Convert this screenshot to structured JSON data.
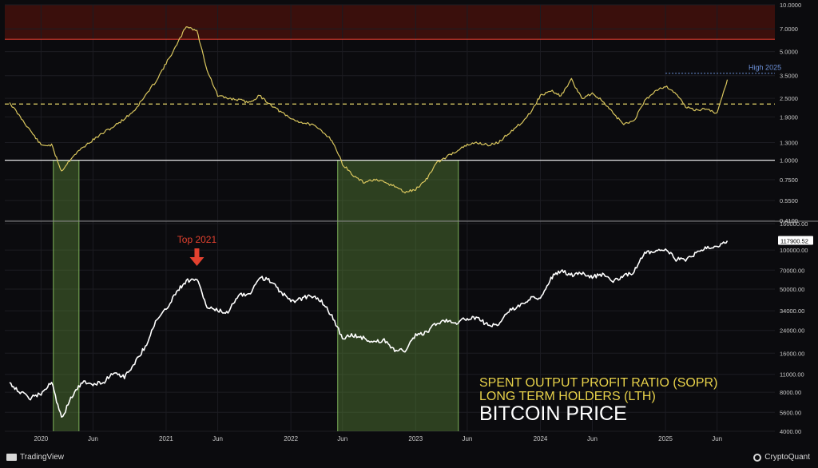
{
  "chart_data": [
    {
      "type": "line",
      "panel": "top",
      "title": "",
      "scale": "log",
      "ylim": [
        0.41,
        10.0
      ],
      "y_ticks": [
        "10.0000",
        "7.0000",
        "5.0000",
        "3.5000",
        "2.5000",
        "1.9000",
        "1.3000",
        "1.0000",
        "0.7500",
        "0.5500",
        "0.4100"
      ],
      "y_tick_values": [
        10.0,
        7.0,
        5.0,
        3.5,
        2.5,
        1.9,
        1.3,
        1.0,
        0.75,
        0.55,
        0.41
      ],
      "reference_lines": [
        {
          "value": 1.0,
          "style": "solid",
          "color": "#e6e6e6"
        },
        {
          "value": 2.3,
          "style": "dashed",
          "color": "#e6d56a"
        },
        {
          "value": 6.0,
          "style": "solid",
          "color": "#d23a2e"
        }
      ],
      "high_band": [
        6.0,
        10.0
      ],
      "annotation": "High 2025",
      "series": [
        {
          "color": "#d9c65e",
          "x": [
            "2019-10",
            "2019-11",
            "2019-12",
            "2020-01",
            "2020-02",
            "2020-03",
            "2020-04",
            "2020-05",
            "2020-06",
            "2020-07",
            "2020-08",
            "2020-09",
            "2020-10",
            "2020-11",
            "2020-12",
            "2021-01",
            "2021-02",
            "2021-03",
            "2021-04",
            "2021-05",
            "2021-06",
            "2021-07",
            "2021-08",
            "2021-09",
            "2021-10",
            "2021-11",
            "2021-12",
            "2022-01",
            "2022-02",
            "2022-03",
            "2022-04",
            "2022-05",
            "2022-06",
            "2022-07",
            "2022-08",
            "2022-09",
            "2022-10",
            "2022-11",
            "2022-12",
            "2023-01",
            "2023-02",
            "2023-03",
            "2023-04",
            "2023-05",
            "2023-06",
            "2023-07",
            "2023-08",
            "2023-09",
            "2023-10",
            "2023-11",
            "2023-12",
            "2024-01",
            "2024-02",
            "2024-03",
            "2024-04",
            "2024-05",
            "2024-06",
            "2024-07",
            "2024-08",
            "2024-09",
            "2024-10",
            "2024-11",
            "2024-12",
            "2025-01",
            "2025-02",
            "2025-03",
            "2025-04",
            "2025-05",
            "2025-06",
            "2025-07"
          ],
          "values": [
            2.35,
            1.9,
            1.55,
            1.25,
            1.25,
            0.85,
            1.05,
            1.2,
            1.35,
            1.5,
            1.65,
            1.85,
            2.1,
            2.6,
            3.2,
            4.2,
            5.5,
            7.3,
            6.8,
            3.8,
            2.6,
            2.5,
            2.45,
            2.35,
            2.6,
            2.3,
            2.05,
            1.85,
            1.75,
            1.7,
            1.55,
            1.35,
            0.95,
            0.8,
            0.72,
            0.75,
            0.72,
            0.68,
            0.62,
            0.65,
            0.75,
            0.95,
            1.05,
            1.15,
            1.25,
            1.3,
            1.25,
            1.3,
            1.5,
            1.7,
            2.0,
            2.6,
            2.8,
            2.6,
            3.3,
            2.5,
            2.7,
            2.4,
            2.0,
            1.7,
            1.8,
            2.4,
            2.8,
            3.0,
            2.7,
            2.2,
            2.1,
            2.15,
            2.0,
            3.3
          ]
        }
      ]
    },
    {
      "type": "line",
      "panel": "bottom",
      "title": "",
      "scale": "log",
      "ylim": [
        4000,
        160000
      ],
      "y_ticks": [
        "160000.00",
        "100000.00",
        "70000.00",
        "50000.00",
        "34000.00",
        "24000.00",
        "16000.00",
        "11000.00",
        "8000.00",
        "5600.00",
        "4000.00"
      ],
      "y_tick_values": [
        160000,
        100000,
        70000,
        50000,
        34000,
        24000,
        16000,
        11000,
        8000,
        5600,
        4000
      ],
      "last_price_label": "117900.52",
      "annotation": "Top 2021",
      "series": [
        {
          "color": "#ffffff",
          "x": [
            "2019-10",
            "2019-11",
            "2019-12",
            "2020-01",
            "2020-02",
            "2020-03",
            "2020-04",
            "2020-05",
            "2020-06",
            "2020-07",
            "2020-08",
            "2020-09",
            "2020-10",
            "2020-11",
            "2020-12",
            "2021-01",
            "2021-02",
            "2021-03",
            "2021-04",
            "2021-05",
            "2021-06",
            "2021-07",
            "2021-08",
            "2021-09",
            "2021-10",
            "2021-11",
            "2021-12",
            "2022-01",
            "2022-02",
            "2022-03",
            "2022-04",
            "2022-05",
            "2022-06",
            "2022-07",
            "2022-08",
            "2022-09",
            "2022-10",
            "2022-11",
            "2022-12",
            "2023-01",
            "2023-02",
            "2023-03",
            "2023-04",
            "2023-05",
            "2023-06",
            "2023-07",
            "2023-08",
            "2023-09",
            "2023-10",
            "2023-11",
            "2023-12",
            "2024-01",
            "2024-02",
            "2024-03",
            "2024-04",
            "2024-05",
            "2024-06",
            "2024-07",
            "2024-08",
            "2024-09",
            "2024-10",
            "2024-11",
            "2024-12",
            "2025-01",
            "2025-02",
            "2025-03",
            "2025-04",
            "2025-05",
            "2025-06",
            "2025-07"
          ],
          "values": [
            9500,
            8000,
            7200,
            7800,
            9500,
            5000,
            7500,
            9500,
            9300,
            9500,
            11500,
            10500,
            13500,
            18000,
            28000,
            35000,
            48000,
            58000,
            60000,
            36000,
            34000,
            33000,
            46000,
            45000,
            62000,
            58000,
            48000,
            40000,
            42000,
            45000,
            40000,
            31000,
            21000,
            22000,
            21000,
            19500,
            20000,
            17000,
            16800,
            22000,
            23000,
            27000,
            29000,
            27500,
            30000,
            29500,
            26500,
            26500,
            34000,
            37000,
            42000,
            43000,
            61000,
            70000,
            64000,
            67000,
            62000,
            65000,
            58000,
            63000,
            68000,
            96000,
            97000,
            102000,
            85000,
            84000,
            94000,
            105000,
            107000,
            117900
          ]
        }
      ]
    }
  ],
  "x_axis_labels": [
    {
      "text": "2020",
      "date": "2020-01"
    },
    {
      "text": "Jun",
      "date": "2020-06"
    },
    {
      "text": "2021",
      "date": "2021-01"
    },
    {
      "text": "Jun",
      "date": "2021-06"
    },
    {
      "text": "2022",
      "date": "2022-01"
    },
    {
      "text": "Jun",
      "date": "2022-06"
    },
    {
      "text": "2023",
      "date": "2023-01"
    },
    {
      "text": "Jun",
      "date": "2023-06"
    },
    {
      "text": "2024",
      "date": "2024-01"
    },
    {
      "text": "Jun",
      "date": "2024-06"
    },
    {
      "text": "2025",
      "date": "2025-01"
    },
    {
      "text": "Jun",
      "date": "2025-06"
    }
  ],
  "x_range": [
    "2019-10",
    "2025-12"
  ],
  "highlight_periods": [
    {
      "start": "2020-02-20",
      "end": "2020-05-05",
      "color": "#5c8a3a"
    },
    {
      "start": "2022-06-01",
      "end": "2023-05-20",
      "color": "#5c8a3a"
    }
  ],
  "legend_lines": [
    {
      "text": "SPENT OUTPUT PROFIT RATIO (SOPR)",
      "color": "#e8d24a"
    },
    {
      "text": "LONG TERM HOLDERS (LTH)",
      "color": "#e8d24a"
    },
    {
      "text": "BITCOIN PRICE",
      "color": "#ffffff"
    }
  ],
  "colors": {
    "background": "#0b0b0e",
    "grid": "#1c1c22",
    "sopr_line": "#d9c65e",
    "price_line": "#ffffff",
    "top_arrow": "#e2412f",
    "high_band": "#3a0f0c",
    "annotation_blue": "#6b8fd6"
  },
  "footer": {
    "left_brand": "TradingView",
    "right_brand": "CryptoQuant"
  }
}
